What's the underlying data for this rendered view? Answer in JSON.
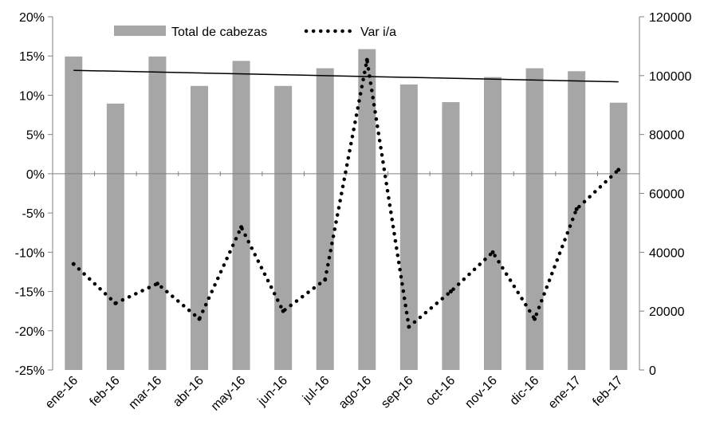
{
  "chart_data": {
    "type": "bar",
    "title": "",
    "xlabel": "",
    "ylabel": "",
    "y2label": "",
    "categories": [
      "ene-16",
      "feb-16",
      "mar-16",
      "abr-16",
      "may-16",
      "jun-16",
      "jul-16",
      "ago-16",
      "sep-16",
      "oct-16",
      "nov-16",
      "dic-16",
      "ene-17",
      "feb-17"
    ],
    "ylim_left": [
      -25,
      20
    ],
    "ylim_right": [
      0,
      120000
    ],
    "left_ticks": [
      "20%",
      "15%",
      "10%",
      "5%",
      "0%",
      "-5%",
      "-10%",
      "-15%",
      "-20%",
      "-25%"
    ],
    "right_ticks": [
      "120000",
      "100000",
      "80000",
      "60000",
      "40000",
      "20000",
      "0"
    ],
    "grid": false,
    "legend_position": "top",
    "series": [
      {
        "name": "Total de cabezas",
        "type": "bar",
        "axis": "right",
        "color": "#a6a6a6",
        "values": [
          106500,
          90500,
          106500,
          96500,
          105000,
          96500,
          102500,
          109000,
          97000,
          91000,
          99500,
          102500,
          101500,
          90800
        ]
      },
      {
        "name": "Var i/a",
        "type": "line",
        "style": "dotted",
        "axis": "left",
        "color": "#000000",
        "values": [
          -11.5,
          -16.5,
          -14.0,
          -18.5,
          -6.8,
          -17.5,
          -13.5,
          14.5,
          -19.5,
          -15.0,
          -10.0,
          -18.5,
          -4.5,
          0.5
        ]
      },
      {
        "type": "line",
        "style": "solid",
        "axis": "right",
        "color": "#000000",
        "values": [
          101800,
          101500,
          101200,
          100900,
          100600,
          100300,
          100000,
          99700,
          99400,
          99100,
          98800,
          98500,
          98200,
          97900
        ]
      }
    ]
  }
}
